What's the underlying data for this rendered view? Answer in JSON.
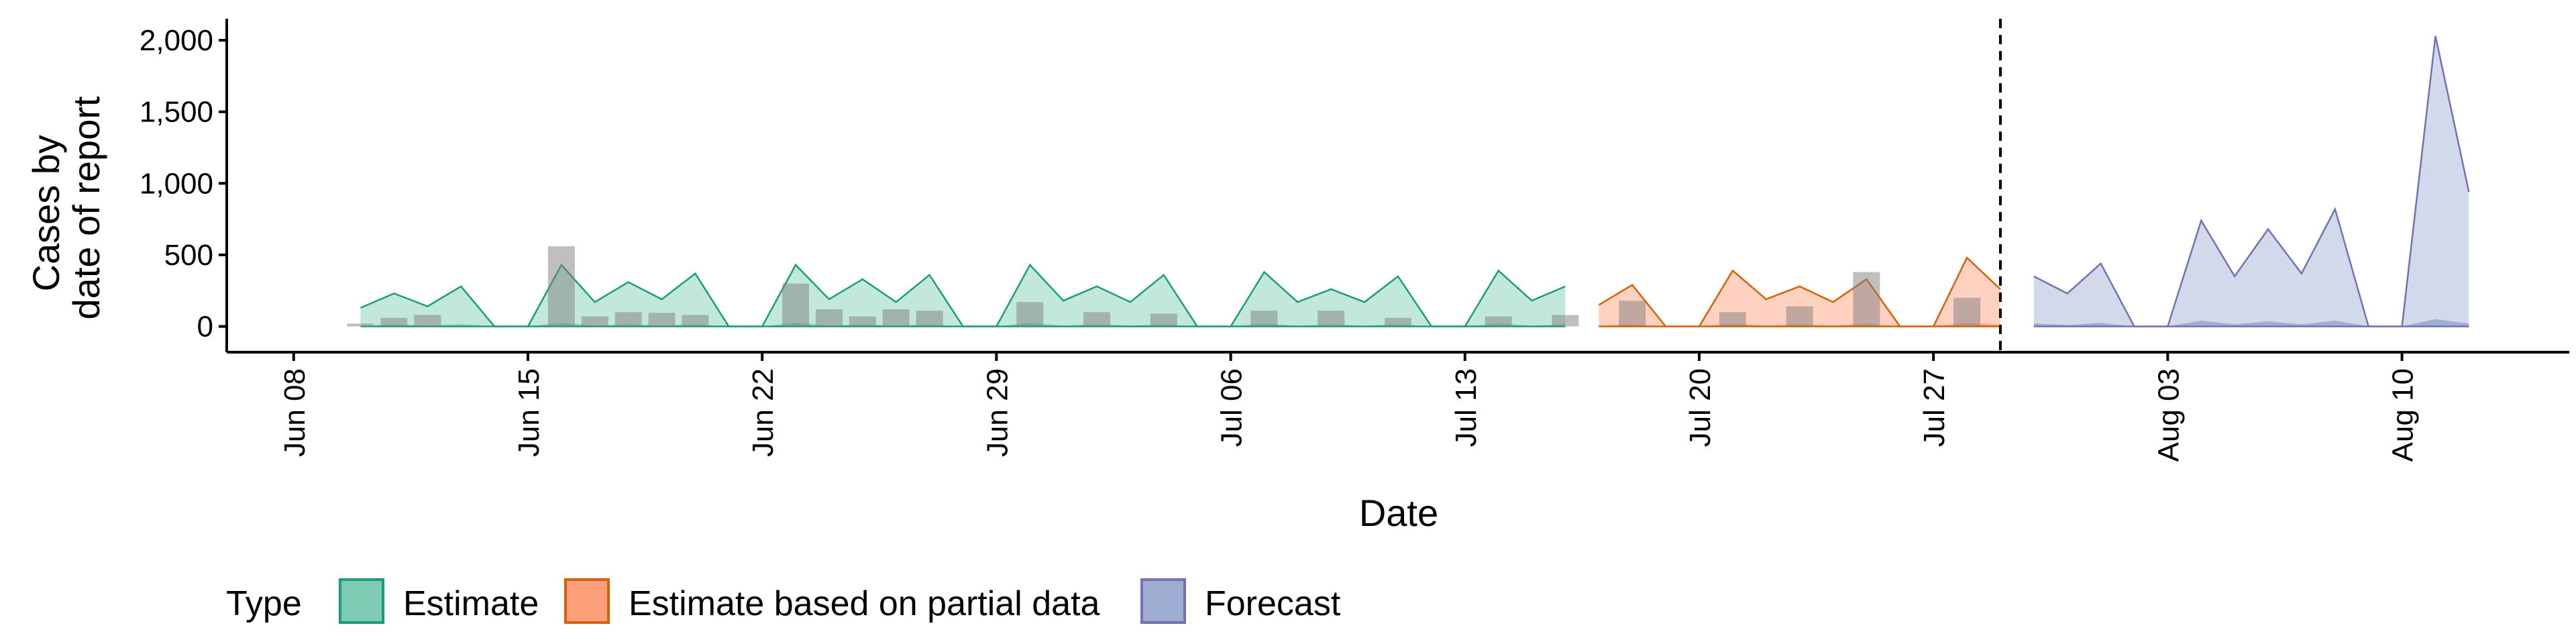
{
  "chart_data": {
    "type": "area",
    "xlabel": "Date",
    "ylabel_lines": [
      "Cases by",
      "date of report"
    ],
    "x_range": [
      "2020-06-06",
      "2020-08-15"
    ],
    "ylim": [
      -180,
      2150
    ],
    "y_ticks": [
      {
        "value": 0,
        "label": "0"
      },
      {
        "value": 500,
        "label": "500"
      },
      {
        "value": 1000,
        "label": "1,000"
      },
      {
        "value": 1500,
        "label": "1,500"
      },
      {
        "value": 2000,
        "label": "2,000"
      }
    ],
    "x_ticks": [
      {
        "date": "2020-06-08",
        "label": "Jun 08"
      },
      {
        "date": "2020-06-15",
        "label": "Jun 15"
      },
      {
        "date": "2020-06-22",
        "label": "Jun 22"
      },
      {
        "date": "2020-06-29",
        "label": "Jun 29"
      },
      {
        "date": "2020-07-06",
        "label": "Jul 06"
      },
      {
        "date": "2020-07-13",
        "label": "Jul 13"
      },
      {
        "date": "2020-07-20",
        "label": "Jul 20"
      },
      {
        "date": "2020-07-27",
        "label": "Jul 27"
      },
      {
        "date": "2020-08-03",
        "label": "Aug 03"
      },
      {
        "date": "2020-08-10",
        "label": "Aug 10"
      }
    ],
    "vline_date": "2020-07-29",
    "observed": {
      "color": "#808080",
      "points": [
        [
          "2020-06-10",
          20
        ],
        [
          "2020-06-11",
          60
        ],
        [
          "2020-06-12",
          80
        ],
        [
          "2020-06-16",
          560
        ],
        [
          "2020-06-17",
          70
        ],
        [
          "2020-06-18",
          100
        ],
        [
          "2020-06-19",
          95
        ],
        [
          "2020-06-20",
          80
        ],
        [
          "2020-06-23",
          300
        ],
        [
          "2020-06-24",
          120
        ],
        [
          "2020-06-25",
          70
        ],
        [
          "2020-06-26",
          120
        ],
        [
          "2020-06-27",
          110
        ],
        [
          "2020-06-30",
          170
        ],
        [
          "2020-07-02",
          100
        ],
        [
          "2020-07-04",
          90
        ],
        [
          "2020-07-07",
          110
        ],
        [
          "2020-07-09",
          110
        ],
        [
          "2020-07-11",
          60
        ],
        [
          "2020-07-14",
          70
        ],
        [
          "2020-07-16",
          80
        ],
        [
          "2020-07-18",
          180
        ],
        [
          "2020-07-21",
          100
        ],
        [
          "2020-07-23",
          140
        ],
        [
          "2020-07-25",
          380
        ],
        [
          "2020-07-28",
          200
        ]
      ]
    },
    "series": [
      {
        "name": "Estimate",
        "fill": "#66C2A5",
        "stroke": "#1B9E77",
        "upper": [
          [
            "2020-06-10",
            130
          ],
          [
            "2020-06-11",
            230
          ],
          [
            "2020-06-12",
            140
          ],
          [
            "2020-06-13",
            280
          ],
          [
            "2020-06-14",
            0
          ],
          [
            "2020-06-15",
            0
          ],
          [
            "2020-06-16",
            430
          ],
          [
            "2020-06-17",
            170
          ],
          [
            "2020-06-18",
            310
          ],
          [
            "2020-06-19",
            190
          ],
          [
            "2020-06-20",
            370
          ],
          [
            "2020-06-21",
            0
          ],
          [
            "2020-06-22",
            0
          ],
          [
            "2020-06-23",
            430
          ],
          [
            "2020-06-24",
            190
          ],
          [
            "2020-06-25",
            330
          ],
          [
            "2020-06-26",
            170
          ],
          [
            "2020-06-27",
            360
          ],
          [
            "2020-06-28",
            0
          ],
          [
            "2020-06-29",
            0
          ],
          [
            "2020-06-30",
            430
          ],
          [
            "2020-07-01",
            180
          ],
          [
            "2020-07-02",
            280
          ],
          [
            "2020-07-03",
            170
          ],
          [
            "2020-07-04",
            360
          ],
          [
            "2020-07-05",
            0
          ],
          [
            "2020-07-06",
            0
          ],
          [
            "2020-07-07",
            380
          ],
          [
            "2020-07-08",
            170
          ],
          [
            "2020-07-09",
            260
          ],
          [
            "2020-07-10",
            170
          ],
          [
            "2020-07-11",
            350
          ],
          [
            "2020-07-12",
            0
          ],
          [
            "2020-07-13",
            0
          ],
          [
            "2020-07-14",
            390
          ],
          [
            "2020-07-15",
            180
          ],
          [
            "2020-07-16",
            280
          ]
        ],
        "lower": [
          [
            "2020-06-10",
            0
          ],
          [
            "2020-06-11",
            15
          ],
          [
            "2020-06-12",
            5
          ],
          [
            "2020-06-13",
            15
          ],
          [
            "2020-06-14",
            0
          ],
          [
            "2020-06-15",
            0
          ],
          [
            "2020-06-16",
            25
          ],
          [
            "2020-06-17",
            5
          ],
          [
            "2020-06-18",
            15
          ],
          [
            "2020-06-19",
            5
          ],
          [
            "2020-06-20",
            15
          ],
          [
            "2020-06-21",
            0
          ],
          [
            "2020-06-22",
            0
          ],
          [
            "2020-06-23",
            25
          ],
          [
            "2020-06-24",
            5
          ],
          [
            "2020-06-25",
            15
          ],
          [
            "2020-06-26",
            5
          ],
          [
            "2020-06-27",
            15
          ],
          [
            "2020-06-28",
            0
          ],
          [
            "2020-06-29",
            0
          ],
          [
            "2020-06-30",
            25
          ],
          [
            "2020-07-01",
            5
          ],
          [
            "2020-07-02",
            15
          ],
          [
            "2020-07-03",
            5
          ],
          [
            "2020-07-04",
            15
          ],
          [
            "2020-07-05",
            0
          ],
          [
            "2020-07-06",
            0
          ],
          [
            "2020-07-07",
            20
          ],
          [
            "2020-07-08",
            5
          ],
          [
            "2020-07-09",
            15
          ],
          [
            "2020-07-10",
            5
          ],
          [
            "2020-07-11",
            15
          ],
          [
            "2020-07-12",
            0
          ],
          [
            "2020-07-13",
            0
          ],
          [
            "2020-07-14",
            20
          ],
          [
            "2020-07-15",
            5
          ],
          [
            "2020-07-16",
            15
          ]
        ]
      },
      {
        "name": "Estimate based on partial data",
        "fill": "#FC8D62",
        "stroke": "#D95F02",
        "upper": [
          [
            "2020-07-17",
            150
          ],
          [
            "2020-07-18",
            290
          ],
          [
            "2020-07-19",
            0
          ],
          [
            "2020-07-20",
            0
          ],
          [
            "2020-07-21",
            390
          ],
          [
            "2020-07-22",
            190
          ],
          [
            "2020-07-23",
            280
          ],
          [
            "2020-07-24",
            170
          ],
          [
            "2020-07-25",
            330
          ],
          [
            "2020-07-26",
            0
          ],
          [
            "2020-07-27",
            0
          ],
          [
            "2020-07-28",
            480
          ],
          [
            "2020-07-29",
            260
          ]
        ],
        "lower": [
          [
            "2020-07-17",
            5
          ],
          [
            "2020-07-18",
            15
          ],
          [
            "2020-07-19",
            0
          ],
          [
            "2020-07-20",
            0
          ],
          [
            "2020-07-21",
            20
          ],
          [
            "2020-07-22",
            5
          ],
          [
            "2020-07-23",
            15
          ],
          [
            "2020-07-24",
            5
          ],
          [
            "2020-07-25",
            20
          ],
          [
            "2020-07-26",
            0
          ],
          [
            "2020-07-27",
            0
          ],
          [
            "2020-07-28",
            25
          ],
          [
            "2020-07-29",
            10
          ]
        ]
      },
      {
        "name": "Forecast",
        "fill": "#8DA0CB",
        "stroke": "#7570B3",
        "upper": [
          [
            "2020-07-30",
            350
          ],
          [
            "2020-07-31",
            230
          ],
          [
            "2020-08-01",
            440
          ],
          [
            "2020-08-02",
            0
          ],
          [
            "2020-08-03",
            0
          ],
          [
            "2020-08-04",
            740
          ],
          [
            "2020-08-05",
            350
          ],
          [
            "2020-08-06",
            680
          ],
          [
            "2020-08-07",
            370
          ],
          [
            "2020-08-08",
            820
          ],
          [
            "2020-08-09",
            0
          ],
          [
            "2020-08-10",
            0
          ],
          [
            "2020-08-11",
            2030
          ],
          [
            "2020-08-12",
            940
          ]
        ],
        "lower": [
          [
            "2020-07-30",
            20
          ],
          [
            "2020-07-31",
            10
          ],
          [
            "2020-08-01",
            25
          ],
          [
            "2020-08-02",
            0
          ],
          [
            "2020-08-03",
            0
          ],
          [
            "2020-08-04",
            40
          ],
          [
            "2020-08-05",
            15
          ],
          [
            "2020-08-06",
            35
          ],
          [
            "2020-08-07",
            15
          ],
          [
            "2020-08-08",
            40
          ],
          [
            "2020-08-09",
            0
          ],
          [
            "2020-08-10",
            0
          ],
          [
            "2020-08-11",
            50
          ],
          [
            "2020-08-12",
            20
          ]
        ]
      }
    ],
    "legend": {
      "title": "Type",
      "placement": "bottom",
      "items": [
        {
          "label": "Estimate",
          "fill": "#66C2A5",
          "stroke": "#1B9E77"
        },
        {
          "label": "Estimate based on partial data",
          "fill": "#FC8D62",
          "stroke": "#D95F02"
        },
        {
          "label": "Forecast",
          "fill": "#8DA0CB",
          "stroke": "#7570B3"
        }
      ]
    }
  }
}
